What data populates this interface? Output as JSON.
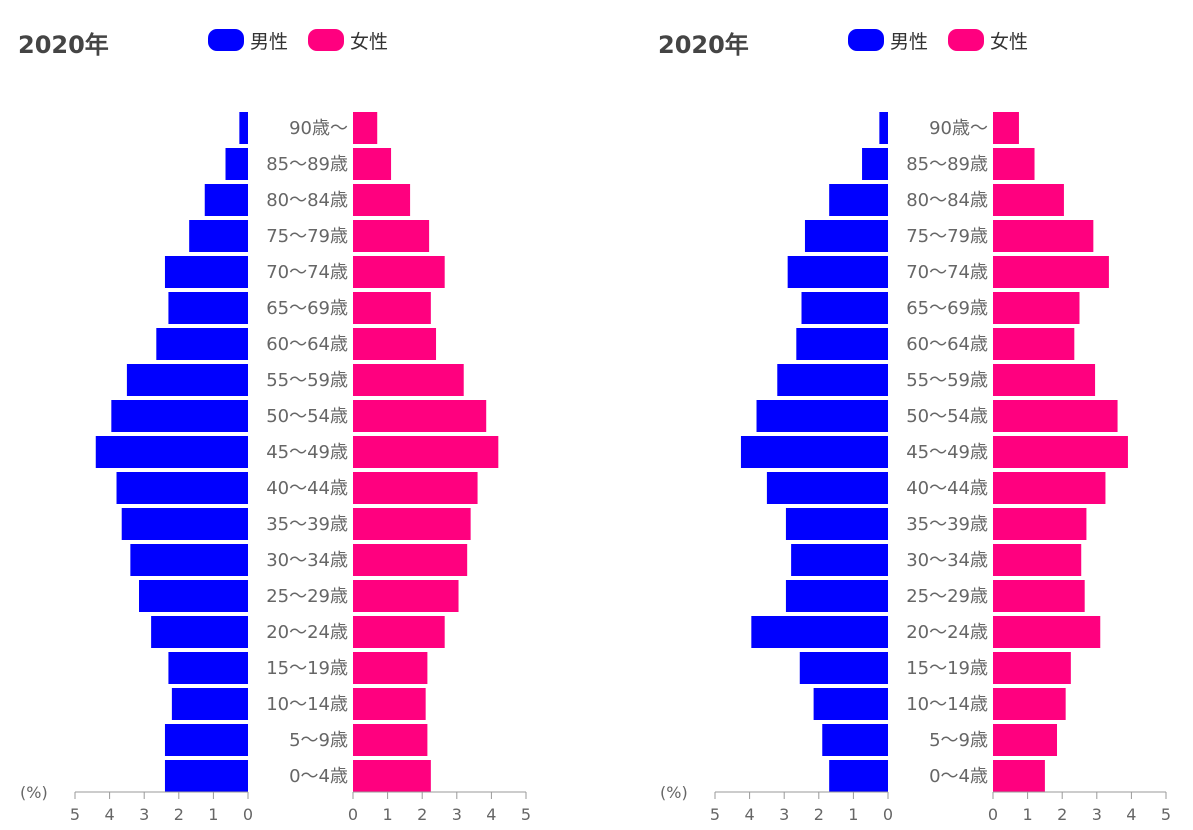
{
  "unit_label": "(%)",
  "colors": {
    "male": "#0000ff",
    "female": "#ff007f"
  },
  "chart_data": [
    {
      "type": "bar",
      "title": "2020年",
      "legend": [
        "男性",
        "女性"
      ],
      "legend_position": "top",
      "categories": [
        "90歳〜",
        "85〜89歳",
        "80〜84歳",
        "75〜79歳",
        "70〜74歳",
        "65〜69歳",
        "60〜64歳",
        "55〜59歳",
        "50〜54歳",
        "45〜49歳",
        "40〜44歳",
        "35〜39歳",
        "30〜34歳",
        "25〜29歳",
        "20〜24歳",
        "15〜19歳",
        "10〜14歳",
        "5〜9歳",
        "0〜4歳"
      ],
      "series": [
        {
          "name": "男性",
          "values": [
            0.25,
            0.65,
            1.25,
            1.7,
            2.4,
            2.3,
            2.65,
            3.5,
            3.95,
            4.4,
            3.8,
            3.65,
            3.4,
            3.15,
            2.8,
            2.3,
            2.2,
            2.4,
            2.4
          ]
        },
        {
          "name": "女性",
          "values": [
            0.7,
            1.1,
            1.65,
            2.2,
            2.65,
            2.25,
            2.4,
            3.2,
            3.85,
            4.2,
            3.6,
            3.4,
            3.3,
            3.05,
            2.65,
            2.15,
            2.1,
            2.15,
            2.25
          ]
        }
      ],
      "x_ticks": [
        5,
        4,
        3,
        2,
        1,
        0
      ],
      "xlim": [
        0,
        5
      ],
      "grid": false
    },
    {
      "type": "bar",
      "title": "2020年",
      "legend": [
        "男性",
        "女性"
      ],
      "legend_position": "top",
      "categories": [
        "90歳〜",
        "85〜89歳",
        "80〜84歳",
        "75〜79歳",
        "70〜74歳",
        "65〜69歳",
        "60〜64歳",
        "55〜59歳",
        "50〜54歳",
        "45〜49歳",
        "40〜44歳",
        "35〜39歳",
        "30〜34歳",
        "25〜29歳",
        "20〜24歳",
        "15〜19歳",
        "10〜14歳",
        "5〜9歳",
        "0〜4歳"
      ],
      "series": [
        {
          "name": "男性",
          "values": [
            0.25,
            0.75,
            1.7,
            2.4,
            2.9,
            2.5,
            2.65,
            3.2,
            3.8,
            4.25,
            3.5,
            2.95,
            2.8,
            2.95,
            3.95,
            2.55,
            2.15,
            1.9,
            1.7
          ]
        },
        {
          "name": "女性",
          "values": [
            0.75,
            1.2,
            2.05,
            2.9,
            3.35,
            2.5,
            2.35,
            2.95,
            3.6,
            3.9,
            3.25,
            2.7,
            2.55,
            2.65,
            3.1,
            2.25,
            2.1,
            1.85,
            1.5
          ]
        }
      ],
      "x_ticks": [
        5,
        4,
        3,
        2,
        1,
        0
      ],
      "xlim": [
        0,
        5
      ],
      "grid": false
    }
  ]
}
